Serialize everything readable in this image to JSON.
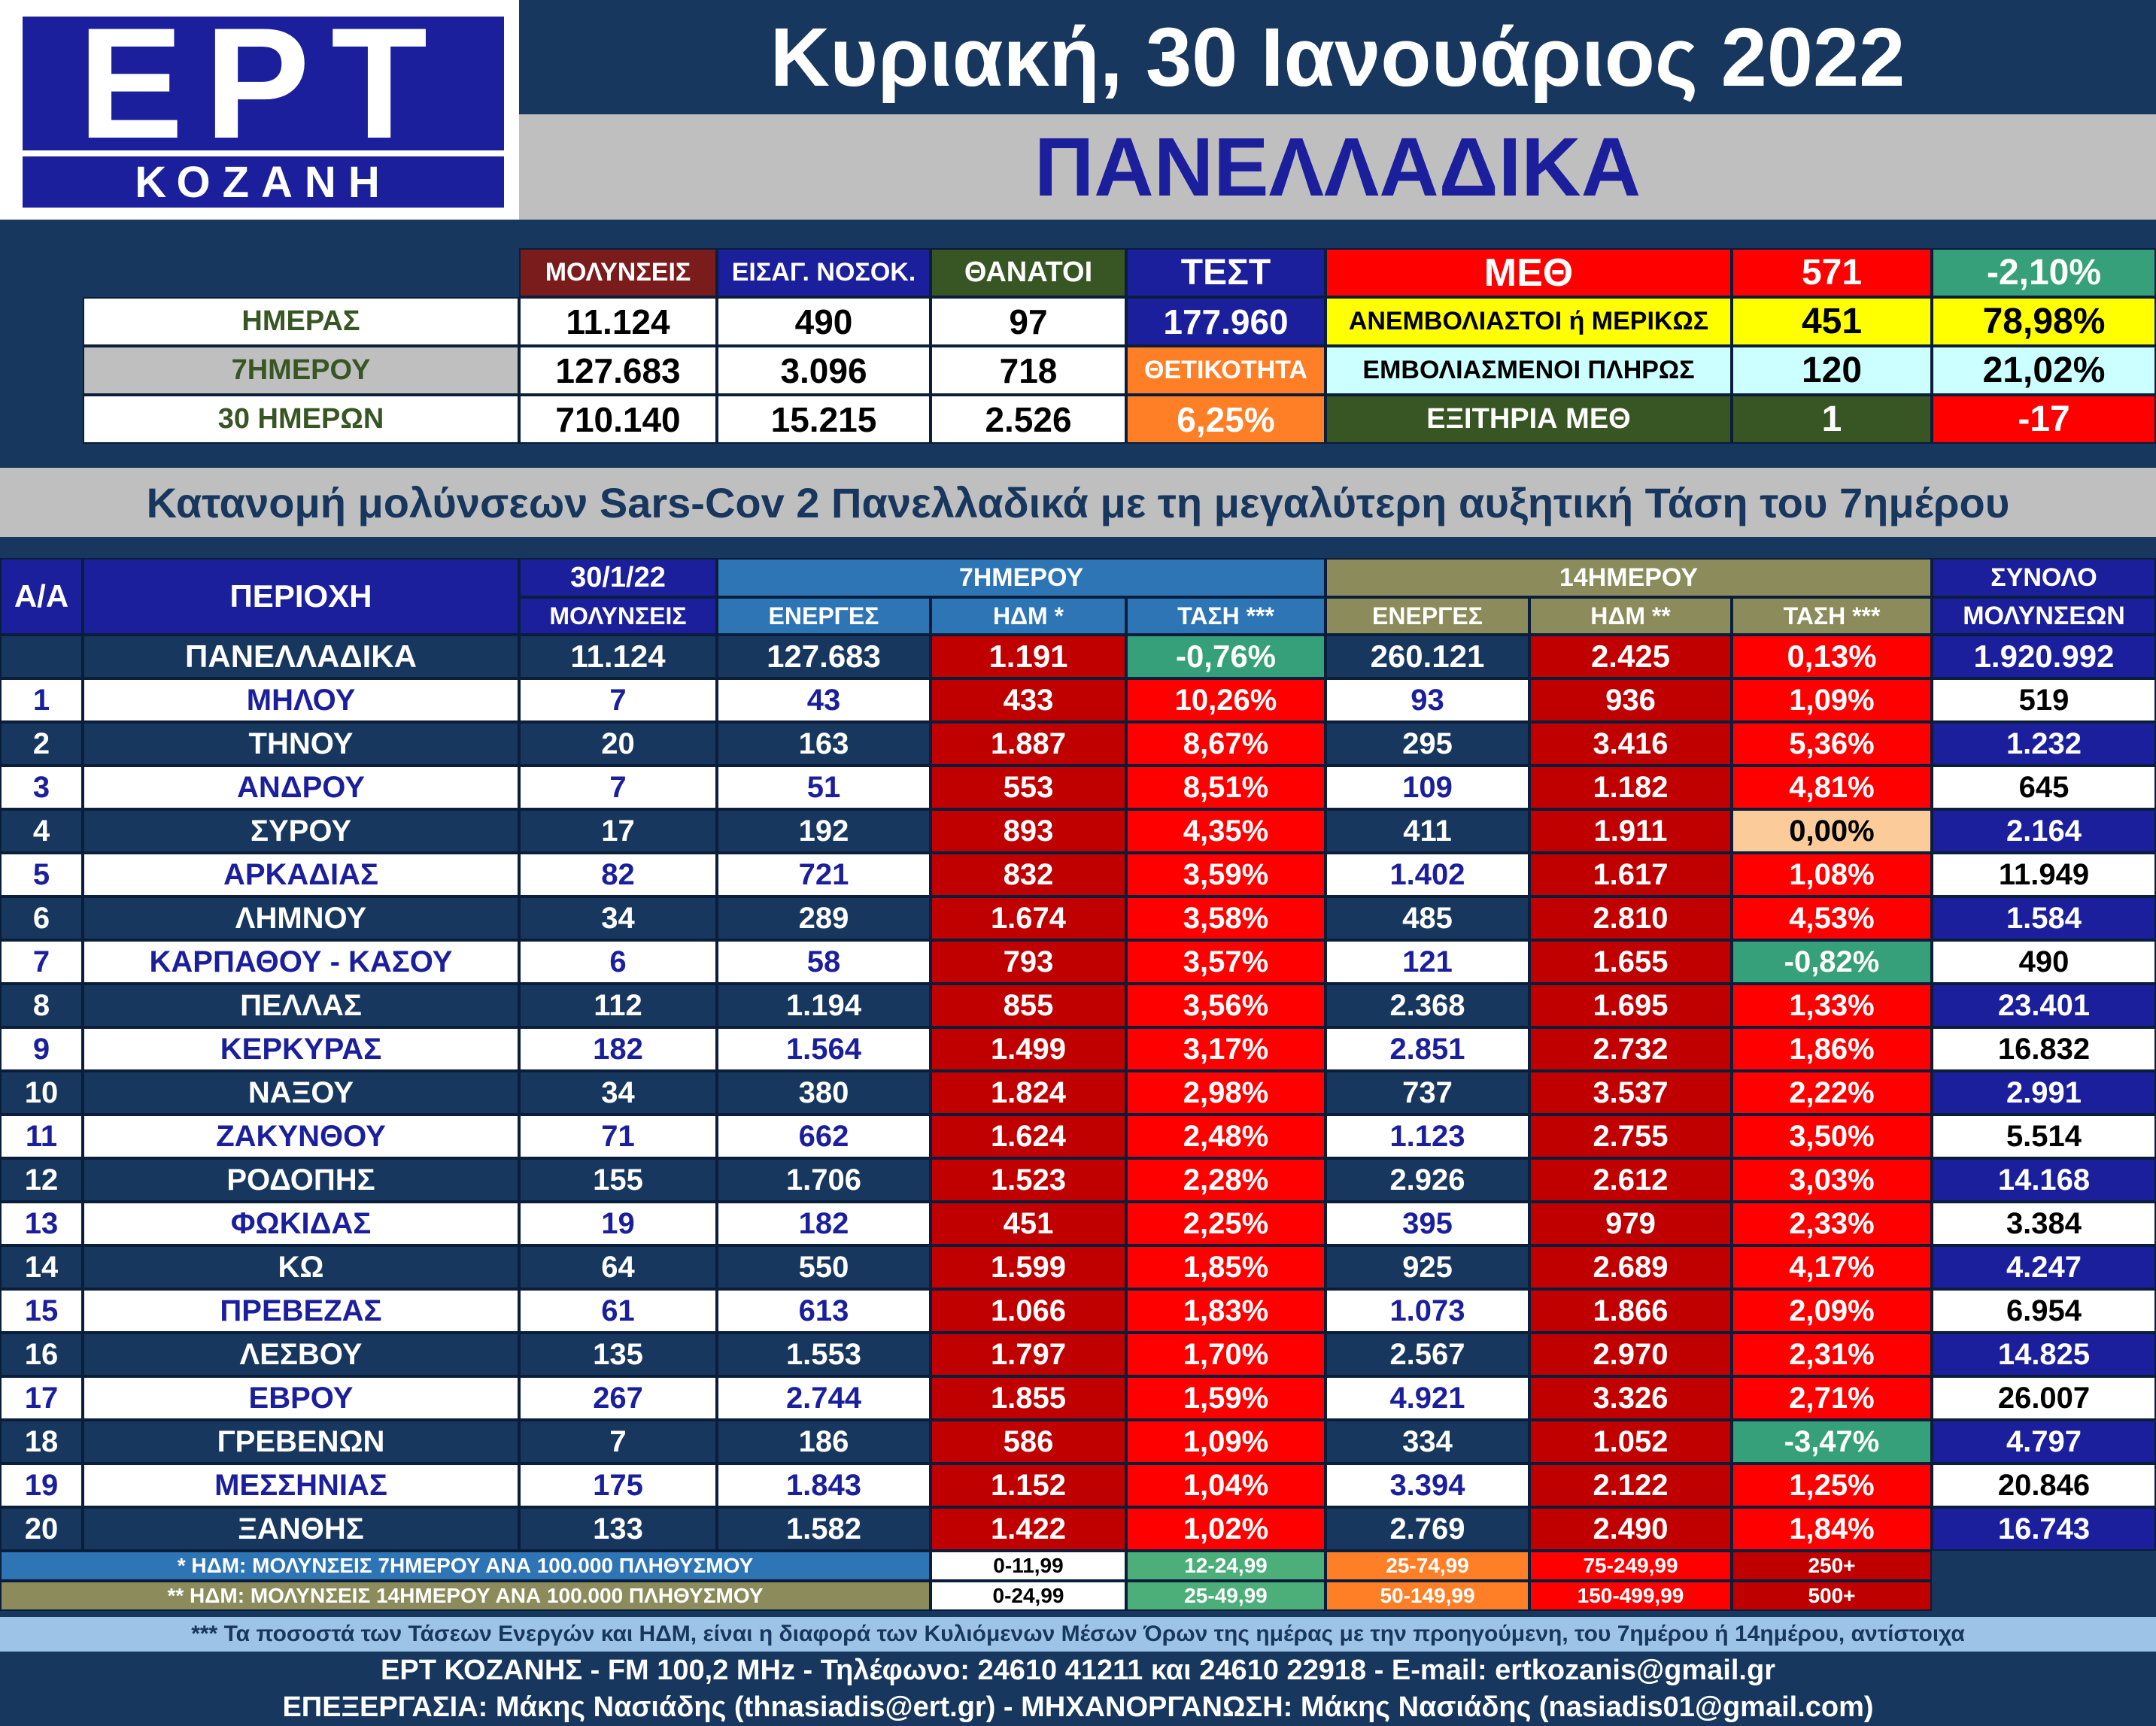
{
  "header": {
    "logo_main": "ΕΡΤ",
    "logo_sub": "ΚΟΖΑΝΗ",
    "date": "Κυριακή, 30 Ιανουάριος 2022",
    "scope": "ΠΑΝΕΛΛΑΔΙΚΑ"
  },
  "summary": {
    "col_headers": [
      "ΜΟΛΥΝΣΕΙΣ",
      "ΕΙΣΑΓ. ΝΟΣΟΚ.",
      "ΘΑΝΑΤΟΙ",
      "ΤΕΣΤ"
    ],
    "rows": [
      {
        "label": "ΗΜΕΡΑΣ",
        "values": [
          "11.124",
          "490",
          "97"
        ]
      },
      {
        "label": "7ΗΜΕΡΟΥ",
        "values": [
          "127.683",
          "3.096",
          "718"
        ]
      },
      {
        "label": "30 ΗΜΕΡΩΝ",
        "values": [
          "710.140",
          "15.215",
          "2.526"
        ]
      }
    ],
    "test_value": "177.960",
    "positivity_label": "ΘΕΤΙΚΟΤΗΤΑ",
    "positivity_value": "6,25%",
    "icu": {
      "title": "ΜΕΘ",
      "total": "571",
      "total_change": "-2,10%",
      "unvax_label": "ΑΝΕΜΒΟΛΙΑΣΤΟΙ ή ΜΕΡΙΚΩΣ",
      "unvax_count": "451",
      "unvax_pct": "78,98%",
      "vax_label": "ΕΜΒΟΛΙΑΣΜΕΝΟΙ ΠΛΗΡΩΣ",
      "vax_count": "120",
      "vax_pct": "21,02%",
      "exit_label": "ΕΞΙΤΗΡΙΑ ΜΕΘ",
      "exit_count": "1",
      "exit_change": "-17"
    }
  },
  "banner": "Κατανομή μολύνσεων Sars-Cov 2 Πανελλαδικά με τη μεγαλύτερη αυξητική Τάση του 7ημέρου",
  "table": {
    "headers": {
      "aa": "Α/Α",
      "area": "ΠΕΡΙΟΧΗ",
      "date": "30/1/22",
      "infections": "ΜΟΛΥΝΣΕΙΣ",
      "group7": "7ΗΜΕΡΟΥ",
      "group14": "14ΗΜΕΡΟΥ",
      "active7": "ΕΝΕΡΓΕΣ",
      "hdm7": "ΗΔΜ *",
      "trend7": "ΤΑΣΗ ***",
      "active14": "ΕΝΕΡΓΕΣ",
      "hdm14": "ΗΔΜ **",
      "trend14": "ΤΑΣΗ ***",
      "total1": "ΣΥΝΟΛΟ",
      "total2": "ΜΟΛΥΝΣΕΩΝ"
    },
    "national": {
      "area": "ΠΑΝΕΛΛΑΔΙΚΑ",
      "day": "11.124",
      "active7": "127.683",
      "hdm7": "1.191",
      "trend7": "-0,76%",
      "active14": "260.121",
      "hdm14": "2.425",
      "trend14": "0,13%",
      "total": "1.920.992"
    },
    "rows": [
      {
        "aa": "1",
        "area": "ΜΗΛΟΥ",
        "day": "7",
        "active7": "43",
        "hdm7": "433",
        "trend7": "10,26%",
        "active14": "93",
        "hdm14": "936",
        "trend14": "1,09%",
        "total": "519"
      },
      {
        "aa": "2",
        "area": "ΤΗΝΟΥ",
        "day": "20",
        "active7": "163",
        "hdm7": "1.887",
        "trend7": "8,67%",
        "active14": "295",
        "hdm14": "3.416",
        "trend14": "5,36%",
        "total": "1.232"
      },
      {
        "aa": "3",
        "area": "ΑΝΔΡΟΥ",
        "day": "7",
        "active7": "51",
        "hdm7": "553",
        "trend7": "8,51%",
        "active14": "109",
        "hdm14": "1.182",
        "trend14": "4,81%",
        "total": "645"
      },
      {
        "aa": "4",
        "area": "ΣΥΡΟΥ",
        "day": "17",
        "active7": "192",
        "hdm7": "893",
        "trend7": "4,35%",
        "active14": "411",
        "hdm14": "1.911",
        "trend14": "0,00%",
        "total": "2.164"
      },
      {
        "aa": "5",
        "area": "ΑΡΚΑΔΙΑΣ",
        "day": "82",
        "active7": "721",
        "hdm7": "832",
        "trend7": "3,59%",
        "active14": "1.402",
        "hdm14": "1.617",
        "trend14": "1,08%",
        "total": "11.949"
      },
      {
        "aa": "6",
        "area": "ΛΗΜΝΟΥ",
        "day": "34",
        "active7": "289",
        "hdm7": "1.674",
        "trend7": "3,58%",
        "active14": "485",
        "hdm14": "2.810",
        "trend14": "4,53%",
        "total": "1.584"
      },
      {
        "aa": "7",
        "area": "ΚΑΡΠΑΘΟΥ - ΚΑΣΟΥ",
        "day": "6",
        "active7": "58",
        "hdm7": "793",
        "trend7": "3,57%",
        "active14": "121",
        "hdm14": "1.655",
        "trend14": "-0,82%",
        "total": "490"
      },
      {
        "aa": "8",
        "area": "ΠΕΛΛΑΣ",
        "day": "112",
        "active7": "1.194",
        "hdm7": "855",
        "trend7": "3,56%",
        "active14": "2.368",
        "hdm14": "1.695",
        "trend14": "1,33%",
        "total": "23.401"
      },
      {
        "aa": "9",
        "area": "ΚΕΡΚΥΡΑΣ",
        "day": "182",
        "active7": "1.564",
        "hdm7": "1.499",
        "trend7": "3,17%",
        "active14": "2.851",
        "hdm14": "2.732",
        "trend14": "1,86%",
        "total": "16.832"
      },
      {
        "aa": "10",
        "area": "ΝΑΞΟΥ",
        "day": "34",
        "active7": "380",
        "hdm7": "1.824",
        "trend7": "2,98%",
        "active14": "737",
        "hdm14": "3.537",
        "trend14": "2,22%",
        "total": "2.991"
      },
      {
        "aa": "11",
        "area": "ΖΑΚΥΝΘΟΥ",
        "day": "71",
        "active7": "662",
        "hdm7": "1.624",
        "trend7": "2,48%",
        "active14": "1.123",
        "hdm14": "2.755",
        "trend14": "3,50%",
        "total": "5.514"
      },
      {
        "aa": "12",
        "area": "ΡΟΔΟΠΗΣ",
        "day": "155",
        "active7": "1.706",
        "hdm7": "1.523",
        "trend7": "2,28%",
        "active14": "2.926",
        "hdm14": "2.612",
        "trend14": "3,03%",
        "total": "14.168"
      },
      {
        "aa": "13",
        "area": "ΦΩΚΙΔΑΣ",
        "day": "19",
        "active7": "182",
        "hdm7": "451",
        "trend7": "2,25%",
        "active14": "395",
        "hdm14": "979",
        "trend14": "2,33%",
        "total": "3.384"
      },
      {
        "aa": "14",
        "area": "ΚΩ",
        "day": "64",
        "active7": "550",
        "hdm7": "1.599",
        "trend7": "1,85%",
        "active14": "925",
        "hdm14": "2.689",
        "trend14": "4,17%",
        "total": "4.247"
      },
      {
        "aa": "15",
        "area": "ΠΡΕΒΕΖΑΣ",
        "day": "61",
        "active7": "613",
        "hdm7": "1.066",
        "trend7": "1,83%",
        "active14": "1.073",
        "hdm14": "1.866",
        "trend14": "2,09%",
        "total": "6.954"
      },
      {
        "aa": "16",
        "area": "ΛΕΣΒΟΥ",
        "day": "135",
        "active7": "1.553",
        "hdm7": "1.797",
        "trend7": "1,70%",
        "active14": "2.567",
        "hdm14": "2.970",
        "trend14": "2,31%",
        "total": "14.825"
      },
      {
        "aa": "17",
        "area": "ΕΒΡΟΥ",
        "day": "267",
        "active7": "2.744",
        "hdm7": "1.855",
        "trend7": "1,59%",
        "active14": "4.921",
        "hdm14": "3.326",
        "trend14": "2,71%",
        "total": "26.007"
      },
      {
        "aa": "18",
        "area": "ΓΡΕΒΕΝΩΝ",
        "day": "7",
        "active7": "186",
        "hdm7": "586",
        "trend7": "1,09%",
        "active14": "334",
        "hdm14": "1.052",
        "trend14": "-3,47%",
        "total": "4.797"
      },
      {
        "aa": "19",
        "area": "ΜΕΣΣΗΝΙΑΣ",
        "day": "175",
        "active7": "1.843",
        "hdm7": "1.152",
        "trend7": "1,04%",
        "active14": "3.394",
        "hdm14": "2.122",
        "trend14": "1,25%",
        "total": "20.846"
      },
      {
        "aa": "20",
        "area": "ΞΑΝΘΗΣ",
        "day": "133",
        "active7": "1.582",
        "hdm7": "1.422",
        "trend7": "1,02%",
        "active14": "2.769",
        "hdm14": "2.490",
        "trend14": "1,84%",
        "total": "16.743"
      }
    ]
  },
  "legend": {
    "row1_label": "* ΗΔΜ: ΜΟΛΥΝΣΕΙΣ 7ΗΜΕΡΟΥ ΑΝΑ 100.000 ΠΛΗΘΥΣΜΟΥ",
    "row1_ranges": [
      "0-11,99",
      "12-24,99",
      "25-74,99",
      "75-249,99",
      "250+"
    ],
    "row2_label": "** ΗΔΜ: ΜΟΛΥΝΣΕΙΣ 14ΗΜΕΡΟΥ ΑΝΑ 100.000 ΠΛΗΘΥΣΜΟΥ",
    "row2_ranges": [
      "0-24,99",
      "25-49,99",
      "50-149,99",
      "150-499,99",
      "500+"
    ],
    "range_colors": [
      "#ffffff",
      "#4caf7a",
      "#ff7f27",
      "#ff0000",
      "#c00000"
    ]
  },
  "footer": {
    "note": "*** Τα ποσοστά των Τάσεων Ενεργών και ΗΔΜ, είναι η διαφορά των Κυλιόμενων Μέσων Όρων της ημέρας με την προηγούμενη, του 7ημέρου ή 14ημέρου, αντίστοιχα",
    "contact": "ΕΡΤ ΚΟΖΑΝΗΣ - FM 100,2 MHz - Τηλέφωνο:  24610 41211 και 24610 22918 - E-mail: ertkozanis@gmail.gr",
    "credits": "ΕΠΕΞΕΡΓΑΣΙΑ: Μάκης Νασιάδης (thnasiadis@ert.gr) - ΜΗΧΑΝΟΡΓΑΝΩΣΗ: Μάκης Νασιάδης (nasiadis01@gmail.com)"
  },
  "colors": {
    "navy": "#17375e",
    "blue_header": "#1b1f9c",
    "maroon": "#7b1c1c",
    "dark_red": "#c00000",
    "red": "#ff0000",
    "teal": "#35a07a",
    "olive": "#8b8b5c",
    "peach": "#fbcb9a",
    "yellow": "#ffff00",
    "light_cyan": "#ccffff",
    "green_dark": "#375623",
    "orange": "#ff7f27"
  }
}
